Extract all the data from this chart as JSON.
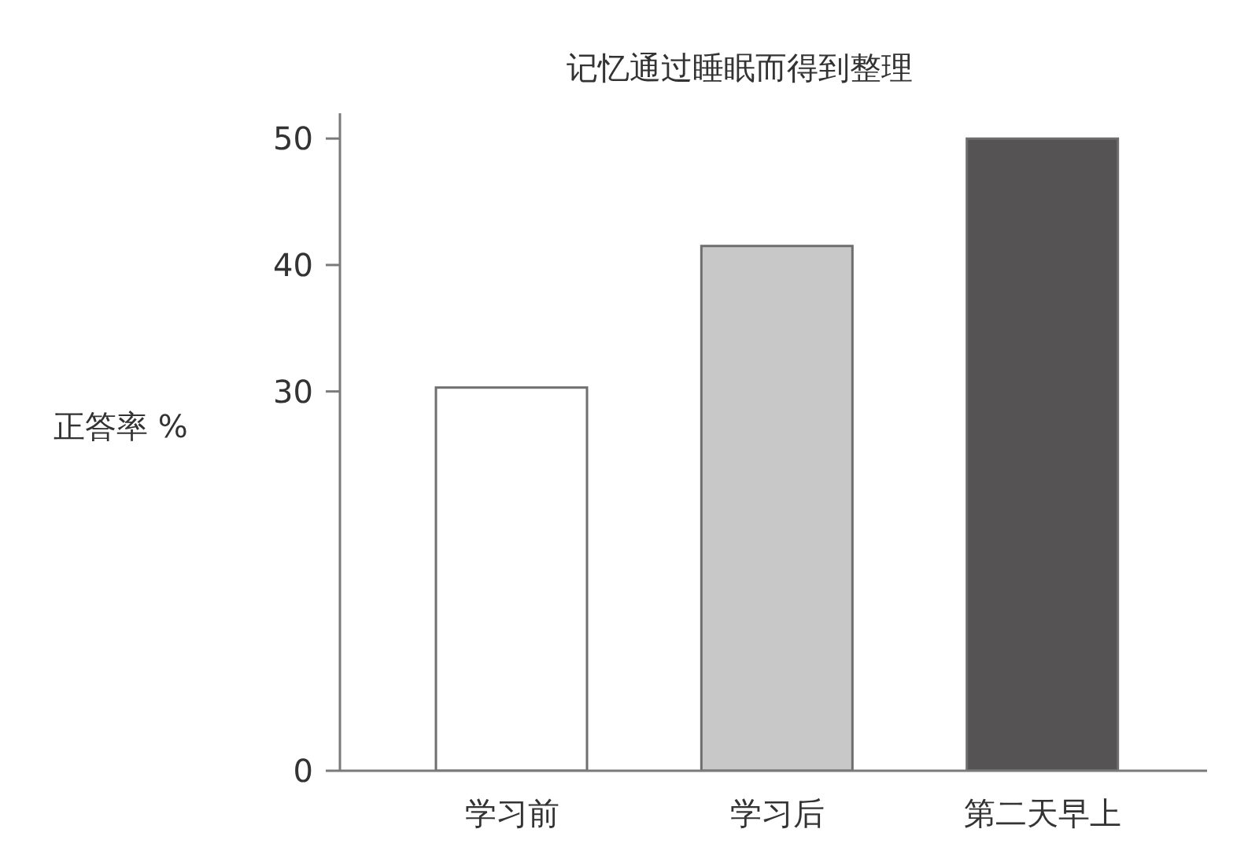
{
  "chart_data": {
    "type": "bar",
    "title": "记忆通过睡眠而得到整理",
    "ylabel": "正答率 %",
    "categories": [
      "学习前",
      "学习后",
      "第二天早上"
    ],
    "values": [
      30.3,
      41.5,
      50
    ],
    "colors": [
      "#ffffff",
      "#c8c8c8",
      "#555354"
    ],
    "ylim": [
      0,
      52
    ],
    "yticks": [
      0,
      30,
      40,
      50
    ]
  }
}
